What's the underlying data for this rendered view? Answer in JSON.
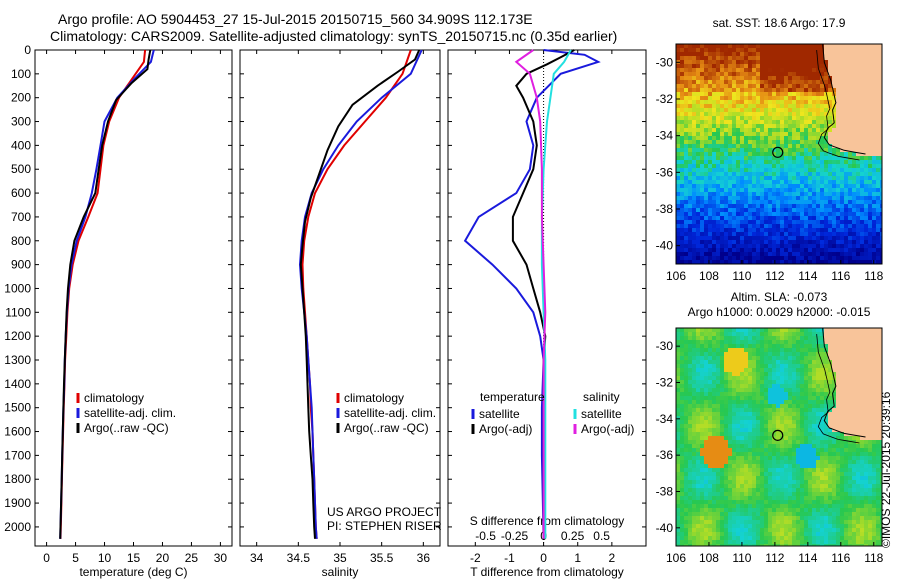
{
  "title_line1": "Argo profile: AO 5904453_27 15-Jul-2015 20150715_560 34.909S 112.173E",
  "title_line2": "Climatology: CARS2009. Satellite-adjusted climatology: synTS_20150715.nc (0.35d earlier)",
  "colors": {
    "red": "#e00000",
    "blue": "#1a1adc",
    "black": "#000000",
    "cyan": "#22e0e0",
    "magenta": "#e020e0",
    "land": "#f8c49a"
  },
  "chart_data": [
    {
      "type": "line",
      "name": "temperature-panel",
      "xlabel": "temperature (deg C)",
      "ylabel": "",
      "xlim": [
        -2,
        32
      ],
      "ylim": [
        2080,
        0
      ],
      "y_reversed": true,
      "xticks": [
        0,
        5,
        10,
        15,
        20,
        25,
        30
      ],
      "yticks": [
        0,
        100,
        200,
        300,
        400,
        500,
        600,
        700,
        800,
        900,
        1000,
        1100,
        1200,
        1300,
        1400,
        1500,
        1600,
        1700,
        1800,
        1900,
        2000
      ],
      "legend": [
        "climatology",
        "satellite-adj. clim.",
        "Argo(..raw -QC)"
      ],
      "series": [
        {
          "name": "climatology",
          "color": "red",
          "points": [
            [
              17.0,
              0
            ],
            [
              16.8,
              50
            ],
            [
              14.8,
              120
            ],
            [
              12.5,
              200
            ],
            [
              10.8,
              300
            ],
            [
              9.8,
              400
            ],
            [
              9.3,
              500
            ],
            [
              8.8,
              600
            ],
            [
              7.2,
              700
            ],
            [
              5.5,
              800
            ],
            [
              4.5,
              900
            ],
            [
              3.9,
              1000
            ],
            [
              3.6,
              1100
            ],
            [
              3.4,
              1200
            ],
            [
              3.2,
              1300
            ],
            [
              3.1,
              1400
            ],
            [
              2.95,
              1500
            ],
            [
              2.85,
              1600
            ],
            [
              2.75,
              1700
            ],
            [
              2.65,
              1800
            ],
            [
              2.55,
              1900
            ],
            [
              2.45,
              2000
            ],
            [
              2.4,
              2050
            ]
          ]
        },
        {
          "name": "satellite-adj. clim.",
          "color": "blue",
          "points": [
            [
              18.5,
              0
            ],
            [
              18.0,
              50
            ],
            [
              15.2,
              120
            ],
            [
              12.2,
              200
            ],
            [
              10.0,
              300
            ],
            [
              9.3,
              400
            ],
            [
              8.6,
              500
            ],
            [
              7.8,
              600
            ],
            [
              6.7,
              700
            ],
            [
              5.2,
              800
            ],
            [
              4.3,
              900
            ],
            [
              3.8,
              1000
            ],
            [
              3.5,
              1100
            ],
            [
              3.3,
              1200
            ],
            [
              3.15,
              1300
            ],
            [
              3.05,
              1400
            ],
            [
              2.9,
              1500
            ],
            [
              2.8,
              1600
            ],
            [
              2.7,
              1700
            ],
            [
              2.6,
              1800
            ],
            [
              2.5,
              1900
            ],
            [
              2.4,
              2000
            ],
            [
              2.35,
              2050
            ]
          ]
        },
        {
          "name": "Argo(..raw -QC)",
          "color": "black",
          "points": [
            [
              17.9,
              0
            ],
            [
              17.6,
              40
            ],
            [
              17.4,
              80
            ],
            [
              14.6,
              140
            ],
            [
              12.0,
              210
            ],
            [
              10.6,
              300
            ],
            [
              9.6,
              400
            ],
            [
              9.0,
              500
            ],
            [
              8.4,
              600
            ],
            [
              6.4,
              700
            ],
            [
              4.8,
              800
            ],
            [
              4.1,
              900
            ],
            [
              3.7,
              1000
            ],
            [
              3.45,
              1100
            ],
            [
              3.3,
              1200
            ],
            [
              3.15,
              1300
            ],
            [
              3.0,
              1400
            ],
            [
              2.9,
              1500
            ],
            [
              2.8,
              1600
            ],
            [
              2.7,
              1700
            ],
            [
              2.6,
              1800
            ],
            [
              2.5,
              1900
            ],
            [
              2.4,
              2000
            ],
            [
              2.35,
              2050
            ]
          ]
        }
      ]
    },
    {
      "type": "line",
      "name": "salinity-panel",
      "xlabel": "salinity",
      "ylabel": "",
      "xlim": [
        33.8,
        36.2
      ],
      "ylim": [
        2080,
        0
      ],
      "y_reversed": true,
      "xticks": [
        34,
        34.5,
        35,
        35.5,
        36
      ],
      "legend": [
        "climatology",
        "satellite-adj. clim.",
        "Argo(..raw -QC)"
      ],
      "annotation": [
        "US ARGO PROJECT",
        "PI: STEPHEN RISER"
      ],
      "series": [
        {
          "name": "climatology",
          "color": "red",
          "points": [
            [
              35.85,
              0
            ],
            [
              35.75,
              100
            ],
            [
              35.55,
              200
            ],
            [
              35.3,
              300
            ],
            [
              35.05,
              400
            ],
            [
              34.85,
              500
            ],
            [
              34.7,
              600
            ],
            [
              34.62,
              700
            ],
            [
              34.57,
              800
            ],
            [
              34.55,
              900
            ],
            [
              34.56,
              1000
            ],
            [
              34.58,
              1100
            ],
            [
              34.6,
              1200
            ],
            [
              34.62,
              1300
            ],
            [
              34.64,
              1400
            ],
            [
              34.65,
              1500
            ],
            [
              34.67,
              1600
            ],
            [
              34.68,
              1700
            ],
            [
              34.69,
              1800
            ],
            [
              34.7,
              1900
            ],
            [
              34.71,
              2000
            ],
            [
              34.72,
              2050
            ]
          ]
        },
        {
          "name": "satellite-adj. clim.",
          "color": "blue",
          "points": [
            [
              35.98,
              0
            ],
            [
              35.85,
              100
            ],
            [
              35.5,
              200
            ],
            [
              35.2,
              300
            ],
            [
              34.98,
              400
            ],
            [
              34.8,
              500
            ],
            [
              34.66,
              600
            ],
            [
              34.58,
              700
            ],
            [
              34.54,
              800
            ],
            [
              34.52,
              900
            ],
            [
              34.54,
              1000
            ],
            [
              34.57,
              1100
            ],
            [
              34.6,
              1200
            ],
            [
              34.62,
              1300
            ],
            [
              34.64,
              1400
            ],
            [
              34.66,
              1500
            ],
            [
              34.67,
              1600
            ],
            [
              34.68,
              1700
            ],
            [
              34.69,
              1800
            ],
            [
              34.7,
              1900
            ],
            [
              34.71,
              2000
            ],
            [
              34.72,
              2050
            ]
          ]
        },
        {
          "name": "Argo(..raw -QC)",
          "color": "black",
          "points": [
            [
              35.95,
              0
            ],
            [
              35.9,
              40
            ],
            [
              35.7,
              90
            ],
            [
              35.45,
              150
            ],
            [
              35.15,
              230
            ],
            [
              34.98,
              320
            ],
            [
              34.85,
              420
            ],
            [
              34.75,
              520
            ],
            [
              34.65,
              620
            ],
            [
              34.58,
              720
            ],
            [
              34.55,
              820
            ],
            [
              34.53,
              900
            ],
            [
              34.55,
              1000
            ],
            [
              34.57,
              1100
            ],
            [
              34.59,
              1200
            ],
            [
              34.6,
              1300
            ],
            [
              34.61,
              1400
            ],
            [
              34.62,
              1500
            ],
            [
              34.63,
              1600
            ],
            [
              34.65,
              1700
            ],
            [
              34.67,
              1800
            ],
            [
              34.68,
              1900
            ],
            [
              34.69,
              2000
            ],
            [
              34.7,
              2050
            ]
          ]
        }
      ]
    },
    {
      "type": "line",
      "name": "difference-panel",
      "xlabel": "T difference from climatology",
      "xlabel2": "S difference from climatology",
      "xlim": [
        -2.8,
        3.0
      ],
      "ylim": [
        2080,
        0
      ],
      "y_reversed": true,
      "xticks": [
        -2,
        -1,
        0,
        1,
        2
      ],
      "xticks_s": [
        "-0.5",
        "-0.25",
        "0",
        "0.25",
        "0.5"
      ],
      "legend_t_title": "temperature",
      "legend_s_title": "salinity",
      "legend": [
        "satellite",
        "Argo(-adj)",
        "satellite",
        "Argo(-adj)"
      ],
      "series": [
        {
          "name": "T satellite",
          "color": "blue",
          "points": [
            [
              0,
              0
            ],
            [
              1.2,
              20
            ],
            [
              1.6,
              50
            ],
            [
              0.5,
              100
            ],
            [
              -0.2,
              200
            ],
            [
              -0.5,
              300
            ],
            [
              -0.3,
              400
            ],
            [
              -0.4,
              500
            ],
            [
              -0.8,
              600
            ],
            [
              -1.9,
              700
            ],
            [
              -2.3,
              800
            ],
            [
              -1.5,
              900
            ],
            [
              -0.8,
              1000
            ],
            [
              -0.3,
              1100
            ],
            [
              -0.1,
              1200
            ],
            [
              0,
              1300
            ],
            [
              -0.05,
              1500
            ],
            [
              -0.05,
              1700
            ],
            [
              0,
              2050
            ]
          ]
        },
        {
          "name": "T Argo(-adj)",
          "color": "black",
          "points": [
            [
              0.9,
              0
            ],
            [
              0.5,
              30
            ],
            [
              0.1,
              60
            ],
            [
              -0.5,
              100
            ],
            [
              -0.8,
              150
            ],
            [
              -0.6,
              200
            ],
            [
              -0.3,
              300
            ],
            [
              -0.2,
              400
            ],
            [
              -0.3,
              500
            ],
            [
              -0.6,
              600
            ],
            [
              -0.9,
              700
            ],
            [
              -0.9,
              800
            ],
            [
              -0.5,
              900
            ],
            [
              -0.3,
              1000
            ],
            [
              -0.1,
              1100
            ],
            [
              0.05,
              1200
            ],
            [
              0,
              1300
            ],
            [
              0,
              1500
            ],
            [
              0,
              1800
            ],
            [
              0,
              2050
            ]
          ]
        },
        {
          "name": "S satellite",
          "color": "cyan",
          "points": [
            [
              0.8,
              0
            ],
            [
              0.6,
              50
            ],
            [
              0.3,
              100
            ],
            [
              0.2,
              200
            ],
            [
              0.1,
              300
            ],
            [
              0,
              500
            ],
            [
              -0.05,
              700
            ],
            [
              -0.05,
              900
            ],
            [
              0,
              1100
            ],
            [
              0.05,
              1300
            ],
            [
              0.05,
              1600
            ],
            [
              0.05,
              1900
            ],
            [
              0.05,
              2050
            ]
          ]
        },
        {
          "name": "S Argo(-adj)",
          "color": "magenta",
          "points": [
            [
              -0.3,
              0
            ],
            [
              -0.8,
              50
            ],
            [
              -0.4,
              100
            ],
            [
              -0.2,
              200
            ],
            [
              -0.1,
              300
            ],
            [
              -0.05,
              500
            ],
            [
              -0.05,
              700
            ],
            [
              0,
              900
            ],
            [
              0.05,
              1100
            ],
            [
              0,
              1300
            ],
            [
              0,
              1600
            ],
            [
              0,
              1900
            ],
            [
              0,
              2050
            ]
          ]
        }
      ]
    },
    {
      "type": "heatmap",
      "name": "sst-map",
      "title": "sat. SST: 18.6 Argo: 17.9",
      "xlim": [
        106,
        118.5
      ],
      "ylim": [
        -41,
        -29
      ],
      "xticks": [
        106,
        108,
        110,
        112,
        114,
        116,
        118
      ],
      "yticks": [
        -30,
        -32,
        -34,
        -36,
        -38,
        -40
      ],
      "argo_position": [
        112.173,
        -34.909
      ]
    },
    {
      "type": "heatmap",
      "name": "sla-map",
      "title_line1": "Altim. SLA: -0.073",
      "title_line2": "Argo h1000: 0.0029 h2000: -0.015",
      "xlim": [
        106,
        118.5
      ],
      "ylim": [
        -41,
        -29
      ],
      "xticks": [
        106,
        108,
        110,
        112,
        114,
        116,
        118
      ],
      "yticks": [
        -30,
        -32,
        -34,
        -36,
        -38,
        -40
      ],
      "argo_position": [
        112.173,
        -34.909
      ]
    }
  ],
  "credit": "©IMOS 22-Jul-2015 20:39:16"
}
